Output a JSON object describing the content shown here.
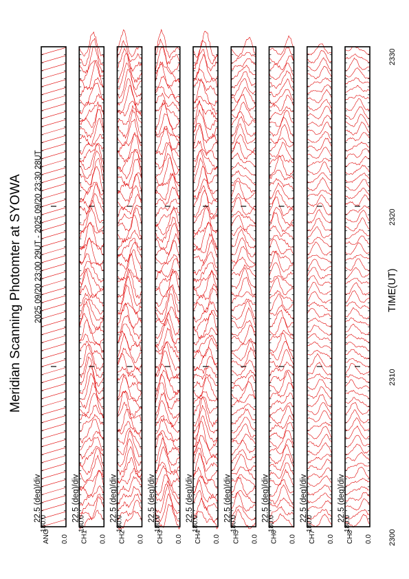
{
  "title": "Meridian Scanning Photomter at SYOWA",
  "subtitle": "2025 09/20 23:00 29UT - 2025 09/20 23:30 28UT",
  "xlabel": "TIME(UT)",
  "x_ticks": [
    "2300",
    "2310",
    "2320",
    "2330"
  ],
  "colors": {
    "traces": "#e00000",
    "axes": "#000000",
    "background": "#ffffff"
  },
  "chart_data": {
    "type": "line",
    "title": "Meridian Scanning Photomter at SYOWA",
    "subtitle": "2025 09/20 23:00 29UT - 2025 09/20 23:30 28UT",
    "xlabel": "TIME(UT)",
    "x_range": [
      "2300",
      "2330"
    ],
    "x_ticks": [
      "2300",
      "2310",
      "2320",
      "2330"
    ],
    "orientation": "rotated 90 degrees counter-clockwise",
    "grid": false,
    "scans_per_panel": 60,
    "panels": [
      {
        "channel_label": "ANG",
        "scale": "22.5 (deg)/div",
        "ylim": [
          "0.0",
          "180.0"
        ],
        "trace_style": "scan-angle sawtooth"
      },
      {
        "channel_label": "CH1",
        "scale": "22.5 (deg)/div",
        "ylim": [
          "0.0",
          "180.0"
        ],
        "activity": "high"
      },
      {
        "channel_label": "CH2",
        "scale": "22.5 (deg)/div",
        "ylim": [
          "0.0",
          "180.0"
        ],
        "activity": "high"
      },
      {
        "channel_label": "CH3",
        "scale": "22.5 (deg)/div",
        "ylim": [
          "0.0",
          "180.0"
        ],
        "activity": "high"
      },
      {
        "channel_label": "CH4",
        "scale": "22.5 (deg)/div",
        "ylim": [
          "0.0",
          "180.0"
        ],
        "activity": "high"
      },
      {
        "channel_label": "CH5",
        "scale": "22.5 (deg)/div",
        "ylim": [
          "0.0",
          "180.0"
        ],
        "activity": "medium"
      },
      {
        "channel_label": "CH6",
        "scale": "22.5 (deg)/div",
        "ylim": [
          "0.0",
          "180.0"
        ],
        "activity": "medium"
      },
      {
        "channel_label": "CH7",
        "scale": "22.5 (deg)/div",
        "ylim": [
          "0.0",
          "180.0"
        ],
        "activity": "low"
      },
      {
        "channel_label": "CH8",
        "scale": "22.5 (deg)/div",
        "ylim": [
          "0.0",
          "180.0"
        ],
        "activity": "low"
      }
    ]
  }
}
